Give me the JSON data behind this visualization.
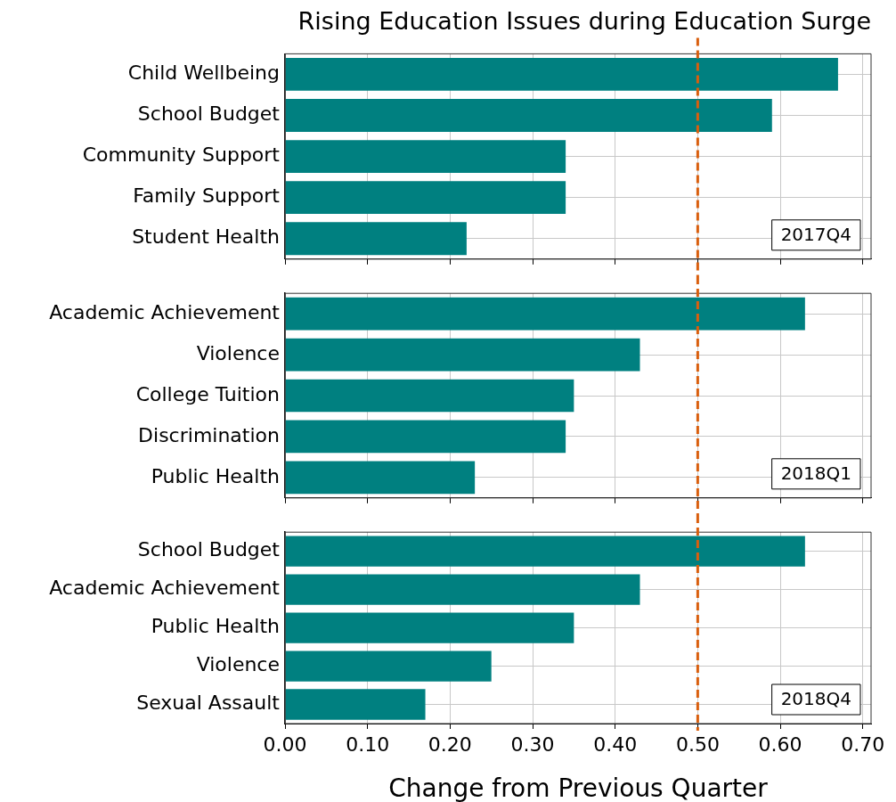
{
  "chart_data": [
    {
      "type": "bar",
      "orientation": "horizontal",
      "title": "Rising Education Issues during Education Surge",
      "categories": [
        "Child Wellbeing",
        "School Budget",
        "Community Support",
        "Family Support",
        "Student Health"
      ],
      "values": [
        0.67,
        0.59,
        0.34,
        0.34,
        0.22
      ],
      "color": "#008080",
      "xlim": [
        0,
        0.71
      ],
      "xticks": [
        {
          "value": 0,
          "label": null
        },
        {
          "value": 0.1,
          "label": null
        },
        {
          "value": 0.2,
          "label": null
        },
        {
          "value": 0.3,
          "label": null
        },
        {
          "value": 0.4,
          "label": null
        },
        {
          "value": 0.5,
          "label": null
        },
        {
          "value": 0.6,
          "label": null
        },
        {
          "value": 0.7,
          "label": null
        }
      ],
      "tick_labels": "y",
      "grid": true,
      "annotations": [
        "2017Q4"
      ],
      "ref_lines": [
        {
          "axis": "x",
          "value": 0.5,
          "color": "#d95f0e",
          "line_style": "dashed"
        }
      ]
    },
    {
      "type": "bar",
      "orientation": "horizontal",
      "categories": [
        "Academic Achievement",
        "Violence",
        "College Tuition",
        "Discrimination",
        "Public Health"
      ],
      "values": [
        0.63,
        0.43,
        0.35,
        0.34,
        0.23
      ],
      "color": "#008080",
      "xlim": [
        0,
        0.71
      ],
      "xticks": [
        {
          "value": 0,
          "label": null
        },
        {
          "value": 0.1,
          "label": null
        },
        {
          "value": 0.2,
          "label": null
        },
        {
          "value": 0.3,
          "label": null
        },
        {
          "value": 0.4,
          "label": null
        },
        {
          "value": 0.5,
          "label": null
        },
        {
          "value": 0.6,
          "label": null
        },
        {
          "value": 0.7,
          "label": null
        }
      ],
      "tick_labels": "y",
      "grid": true,
      "annotations": [
        "2018Q1"
      ],
      "ref_lines": [
        {
          "axis": "x",
          "value": 0.5,
          "color": "#d95f0e",
          "line_style": "dashed"
        }
      ]
    },
    {
      "type": "bar",
      "orientation": "horizontal",
      "xlabel": "Change from Previous Quarter",
      "categories": [
        "School Budget",
        "Academic Achievement",
        "Public Health",
        "Violence",
        "Sexual Assault"
      ],
      "values": [
        0.63,
        0.43,
        0.35,
        0.25,
        0.17
      ],
      "color": "#008080",
      "xlim": [
        0,
        0.71
      ],
      "xticks": [
        {
          "value": 0,
          "label": "0.00"
        },
        {
          "value": 0.1,
          "label": "0.10"
        },
        {
          "value": 0.2,
          "label": "0.20"
        },
        {
          "value": 0.3,
          "label": "0.30"
        },
        {
          "value": 0.4,
          "label": "0.40"
        },
        {
          "value": 0.5,
          "label": "0.50"
        },
        {
          "value": 0.6,
          "label": "0.60"
        },
        {
          "value": 0.7,
          "label": "0.70"
        }
      ],
      "grid": true,
      "annotations": [
        "2018Q4"
      ],
      "ref_lines": [
        {
          "axis": "x",
          "value": 0.5,
          "color": "#d95f0e",
          "line_style": "dashed"
        }
      ]
    }
  ]
}
